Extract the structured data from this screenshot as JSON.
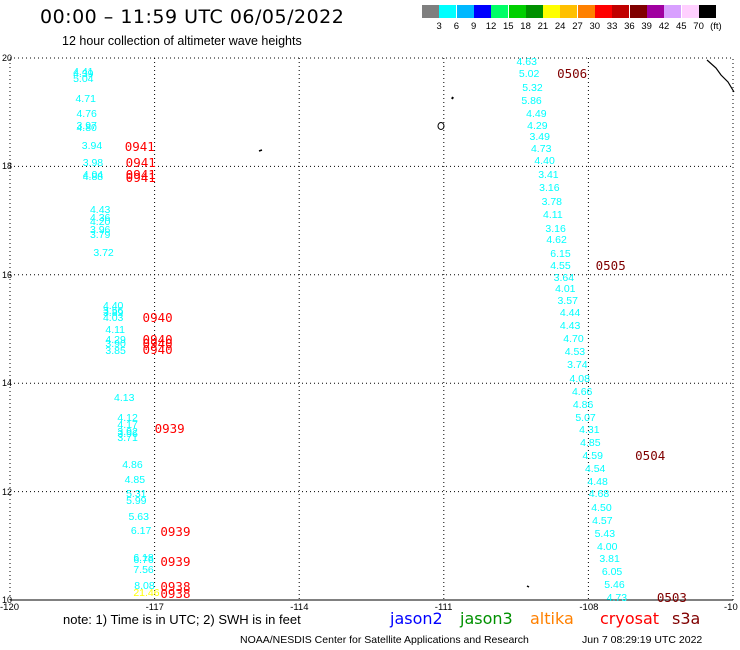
{
  "header": {
    "title": "00:00 – 11:59 UTC 06/05/2022",
    "subtitle": "12 hour collection of altimeter wave heights"
  },
  "colorbar": {
    "unit": "(ft)",
    "cells": [
      {
        "label": "3",
        "color": "#7f7f7f"
      },
      {
        "label": "6",
        "color": "#00ffff"
      },
      {
        "label": "9",
        "color": "#00b8ff"
      },
      {
        "label": "12",
        "color": "#0000ff"
      },
      {
        "label": "15",
        "color": "#00ff66"
      },
      {
        "label": "18",
        "color": "#00d000"
      },
      {
        "label": "21",
        "color": "#009000"
      },
      {
        "label": "24",
        "color": "#ffff00"
      },
      {
        "label": "27",
        "color": "#ffc000"
      },
      {
        "label": "30",
        "color": "#ff8000"
      },
      {
        "label": "33",
        "color": "#ff0000"
      },
      {
        "label": "36",
        "color": "#c00000"
      },
      {
        "label": "39",
        "color": "#800000"
      },
      {
        "label": "42",
        "color": "#a000a0"
      },
      {
        "label": "45",
        "color": "#d8a0ff"
      },
      {
        "label": "70",
        "color": "#ffd0ff"
      },
      {
        "label": "",
        "color": "#000000"
      }
    ]
  },
  "axes": {
    "lat_labels": [
      "20",
      "18",
      "16",
      "14",
      "12",
      "10"
    ],
    "lon_labels": [
      "-120",
      "-117",
      "-114",
      "-111",
      "-108",
      "-10"
    ]
  },
  "map_data": {
    "extent": {
      "lon_min": -120,
      "lon_max": -105,
      "lat_min": 10,
      "lat_max": 20
    },
    "gridlines_lon": [
      -117,
      -114,
      -111,
      -108
    ],
    "gridlines_lat": [
      18,
      16,
      14,
      12
    ],
    "west_track": [
      {
        "v": "4.41",
        "lat": 19.74,
        "lon": -118.65,
        "c": "cyan"
      },
      {
        "v": "4.39",
        "lat": 19.7,
        "lon": -118.65,
        "c": "cyan"
      },
      {
        "v": "5.04",
        "lat": 19.62,
        "lon": -118.65,
        "c": "cyan"
      },
      {
        "v": "4.71",
        "lat": 19.25,
        "lon": -118.6,
        "c": "cyan"
      },
      {
        "v": "4.76",
        "lat": 18.96,
        "lon": -118.58,
        "c": "cyan"
      },
      {
        "v": "3.97",
        "lat": 18.75,
        "lon": -118.58,
        "c": "cyan"
      },
      {
        "v": "4.80",
        "lat": 18.71,
        "lon": -118.58,
        "c": "cyan"
      },
      {
        "v": "3.94",
        "lat": 18.37,
        "lon": -118.47,
        "c": "cyan"
      },
      {
        "v": "3.98",
        "lat": 18.07,
        "lon": -118.45,
        "c": "cyan"
      },
      {
        "v": "4.04",
        "lat": 17.85,
        "lon": -118.45,
        "c": "cyan"
      },
      {
        "v": "4.88",
        "lat": 17.8,
        "lon": -118.45,
        "c": "cyan"
      },
      {
        "v": "4.43",
        "lat": 17.2,
        "lon": -118.3,
        "c": "cyan"
      },
      {
        "v": "4.36",
        "lat": 17.04,
        "lon": -118.3,
        "c": "cyan"
      },
      {
        "v": "4.20",
        "lat": 16.97,
        "lon": -118.3,
        "c": "cyan"
      },
      {
        "v": "3.96",
        "lat": 16.82,
        "lon": -118.3,
        "c": "cyan"
      },
      {
        "v": "3.79",
        "lat": 16.74,
        "lon": -118.3,
        "c": "cyan"
      },
      {
        "v": "3.72",
        "lat": 16.4,
        "lon": -118.23,
        "c": "cyan"
      },
      {
        "v": "4.40",
        "lat": 15.42,
        "lon": -118.03,
        "c": "cyan"
      },
      {
        "v": "3.56",
        "lat": 15.34,
        "lon": -118.03,
        "c": "cyan"
      },
      {
        "v": "3.89",
        "lat": 15.3,
        "lon": -118.03,
        "c": "cyan"
      },
      {
        "v": "4.03",
        "lat": 15.2,
        "lon": -118.03,
        "c": "cyan"
      },
      {
        "v": "4.11",
        "lat": 14.98,
        "lon": -117.98,
        "c": "cyan"
      },
      {
        "v": "4.29",
        "lat": 14.79,
        "lon": -117.98,
        "c": "cyan"
      },
      {
        "v": "3.90",
        "lat": 14.73,
        "lon": -117.98,
        "c": "cyan"
      },
      {
        "v": "3.85",
        "lat": 14.6,
        "lon": -117.98,
        "c": "cyan"
      },
      {
        "v": "4.13",
        "lat": 13.73,
        "lon": -117.8,
        "c": "cyan"
      },
      {
        "v": "4.12",
        "lat": 13.36,
        "lon": -117.73,
        "c": "cyan"
      },
      {
        "v": "4.17",
        "lat": 13.22,
        "lon": -117.73,
        "c": "cyan"
      },
      {
        "v": "3.92",
        "lat": 13.1,
        "lon": -117.73,
        "c": "cyan"
      },
      {
        "v": "3.96",
        "lat": 13.06,
        "lon": -117.73,
        "c": "cyan"
      },
      {
        "v": "3.71",
        "lat": 12.98,
        "lon": -117.73,
        "c": "cyan"
      },
      {
        "v": "4.86",
        "lat": 12.5,
        "lon": -117.63,
        "c": "cyan"
      },
      {
        "v": "4.85",
        "lat": 12.21,
        "lon": -117.58,
        "c": "cyan"
      },
      {
        "v": "5.31",
        "lat": 11.96,
        "lon": -117.55,
        "c": "cyan"
      },
      {
        "v": "5.99",
        "lat": 11.83,
        "lon": -117.55,
        "c": "cyan"
      },
      {
        "v": "5.63",
        "lat": 11.53,
        "lon": -117.5,
        "c": "cyan"
      },
      {
        "v": "6.17",
        "lat": 11.27,
        "lon": -117.45,
        "c": "cyan"
      },
      {
        "v": "6.18",
        "lat": 10.78,
        "lon": -117.4,
        "c": "cyan"
      },
      {
        "v": "6.76",
        "lat": 10.73,
        "lon": -117.4,
        "c": "cyan"
      },
      {
        "v": "7.56",
        "lat": 10.56,
        "lon": -117.4,
        "c": "cyan"
      },
      {
        "v": "8.08",
        "lat": 10.26,
        "lon": -117.38,
        "c": "cyan"
      },
      {
        "v": "21.46",
        "lat": 10.12,
        "lon": -117.4,
        "c": "yellow"
      }
    ],
    "east_track": [
      {
        "v": "4.63",
        "lat": 19.92,
        "lon": -109.45,
        "c": "cyan"
      },
      {
        "v": "5.02",
        "lat": 19.7,
        "lon": -109.4,
        "c": "cyan"
      },
      {
        "v": "5.32",
        "lat": 19.45,
        "lon": -109.33,
        "c": "cyan"
      },
      {
        "v": "5.86",
        "lat": 19.2,
        "lon": -109.35,
        "c": "cyan"
      },
      {
        "v": "4.49",
        "lat": 18.96,
        "lon": -109.25,
        "c": "cyan"
      },
      {
        "v": "4.29",
        "lat": 18.75,
        "lon": -109.23,
        "c": "cyan"
      },
      {
        "v": "3.49",
        "lat": 18.55,
        "lon": -109.18,
        "c": "cyan"
      },
      {
        "v": "4.73",
        "lat": 18.33,
        "lon": -109.15,
        "c": "cyan"
      },
      {
        "v": "4.40",
        "lat": 18.1,
        "lon": -109.08,
        "c": "cyan"
      },
      {
        "v": "3.41",
        "lat": 17.85,
        "lon": -109.0,
        "c": "cyan"
      },
      {
        "v": "3.16",
        "lat": 17.6,
        "lon": -108.98,
        "c": "cyan"
      },
      {
        "v": "3.78",
        "lat": 17.35,
        "lon": -108.93,
        "c": "cyan"
      },
      {
        "v": "4.11",
        "lat": 17.1,
        "lon": -108.9,
        "c": "cyan"
      },
      {
        "v": "3.16",
        "lat": 16.85,
        "lon": -108.85,
        "c": "cyan"
      },
      {
        "v": "4.62",
        "lat": 16.64,
        "lon": -108.83,
        "c": "cyan"
      },
      {
        "v": "6.15",
        "lat": 16.39,
        "lon": -108.75,
        "c": "cyan"
      },
      {
        "v": "4.55",
        "lat": 16.17,
        "lon": -108.75,
        "c": "cyan"
      },
      {
        "v": "3.64",
        "lat": 15.95,
        "lon": -108.68,
        "c": "cyan"
      },
      {
        "v": "4.01",
        "lat": 15.74,
        "lon": -108.65,
        "c": "cyan"
      },
      {
        "v": "3.57",
        "lat": 15.51,
        "lon": -108.6,
        "c": "cyan"
      },
      {
        "v": "4.44",
        "lat": 15.3,
        "lon": -108.55,
        "c": "cyan"
      },
      {
        "v": "4.43",
        "lat": 15.06,
        "lon": -108.55,
        "c": "cyan"
      },
      {
        "v": "4.70",
        "lat": 14.82,
        "lon": -108.48,
        "c": "cyan"
      },
      {
        "v": "4.53",
        "lat": 14.58,
        "lon": -108.45,
        "c": "cyan"
      },
      {
        "v": "3.74",
        "lat": 14.34,
        "lon": -108.4,
        "c": "cyan"
      },
      {
        "v": "4.08",
        "lat": 14.08,
        "lon": -108.35,
        "c": "cyan"
      },
      {
        "v": "4.66",
        "lat": 13.84,
        "lon": -108.3,
        "c": "cyan"
      },
      {
        "v": "4.86",
        "lat": 13.6,
        "lon": -108.28,
        "c": "cyan"
      },
      {
        "v": "5.07",
        "lat": 13.36,
        "lon": -108.23,
        "c": "cyan"
      },
      {
        "v": "4.31",
        "lat": 13.13,
        "lon": -108.15,
        "c": "cyan"
      },
      {
        "v": "4.85",
        "lat": 12.89,
        "lon": -108.13,
        "c": "cyan"
      },
      {
        "v": "4.59",
        "lat": 12.65,
        "lon": -108.08,
        "c": "cyan"
      },
      {
        "v": "4.54",
        "lat": 12.41,
        "lon": -108.03,
        "c": "cyan"
      },
      {
        "v": "4.48",
        "lat": 12.17,
        "lon": -107.98,
        "c": "cyan"
      },
      {
        "v": "4.68",
        "lat": 11.96,
        "lon": -107.95,
        "c": "cyan"
      },
      {
        "v": "4.50",
        "lat": 11.7,
        "lon": -107.9,
        "c": "cyan"
      },
      {
        "v": "4.57",
        "lat": 11.46,
        "lon": -107.88,
        "c": "cyan"
      },
      {
        "v": "5.43",
        "lat": 11.22,
        "lon": -107.83,
        "c": "cyan"
      },
      {
        "v": "4.00",
        "lat": 10.98,
        "lon": -107.78,
        "c": "cyan"
      },
      {
        "v": "3.81",
        "lat": 10.75,
        "lon": -107.73,
        "c": "cyan"
      },
      {
        "v": "6.05",
        "lat": 10.51,
        "lon": -107.68,
        "c": "cyan"
      },
      {
        "v": "5.46",
        "lat": 10.28,
        "lon": -107.63,
        "c": "cyan"
      },
      {
        "v": "4.73",
        "lat": 10.04,
        "lon": -107.58,
        "c": "cyan"
      }
    ],
    "time_labels": [
      {
        "t": "0941",
        "lat": 18.36,
        "lon": -117.62,
        "sat": "cryosat"
      },
      {
        "t": "0941",
        "lat": 18.07,
        "lon": -117.6,
        "sat": "cryosat"
      },
      {
        "t": "0941",
        "lat": 17.85,
        "lon": -117.6,
        "sat": "cryosat"
      },
      {
        "t": "0941",
        "lat": 17.79,
        "lon": -117.6,
        "sat": "cryosat"
      },
      {
        "t": "0940",
        "lat": 15.2,
        "lon": -117.25,
        "sat": "cryosat"
      },
      {
        "t": "0940",
        "lat": 14.8,
        "lon": -117.25,
        "sat": "cryosat"
      },
      {
        "t": "0940",
        "lat": 14.72,
        "lon": -117.25,
        "sat": "cryosat"
      },
      {
        "t": "0940",
        "lat": 14.61,
        "lon": -117.25,
        "sat": "cryosat"
      },
      {
        "t": "0939",
        "lat": 13.15,
        "lon": -117.0,
        "sat": "cryosat"
      },
      {
        "t": "0939",
        "lat": 11.26,
        "lon": -116.88,
        "sat": "cryosat"
      },
      {
        "t": "0939",
        "lat": 10.7,
        "lon": -116.88,
        "sat": "cryosat"
      },
      {
        "t": "0938",
        "lat": 10.24,
        "lon": -116.88,
        "sat": "cryosat"
      },
      {
        "t": "0938",
        "lat": 10.11,
        "lon": -116.88,
        "sat": "cryosat"
      },
      {
        "t": "0506",
        "lat": 19.7,
        "lon": -108.65,
        "sat": "s3a"
      },
      {
        "t": "0505",
        "lat": 16.17,
        "lon": -107.85,
        "sat": "s3a"
      },
      {
        "t": "0504",
        "lat": 12.65,
        "lon": -107.03,
        "sat": "s3a"
      },
      {
        "t": "0503",
        "lat": 10.04,
        "lon": -106.58,
        "sat": "s3a"
      }
    ]
  },
  "legend": {
    "note": "note:  1) Time is in UTC;  2) SWH is in feet",
    "satellites": [
      {
        "name": "jason2",
        "color": "#0000ff"
      },
      {
        "name": "jason3",
        "color": "#009000"
      },
      {
        "name": "altika",
        "color": "#ff8000"
      },
      {
        "name": "cryosat",
        "color": "#ff0000"
      },
      {
        "name": "s3a",
        "color": "#800000"
      }
    ]
  },
  "footer": {
    "credit": "NOAA/NESDIS Center for Satellite Applications and Research",
    "timestamp": "Jun  7 08:29:19 UTC 2022"
  },
  "colors": {
    "cyan": "#00ffff",
    "yellow": "#ffff00",
    "cryosat": "#ff0000",
    "s3a": "#800000"
  }
}
